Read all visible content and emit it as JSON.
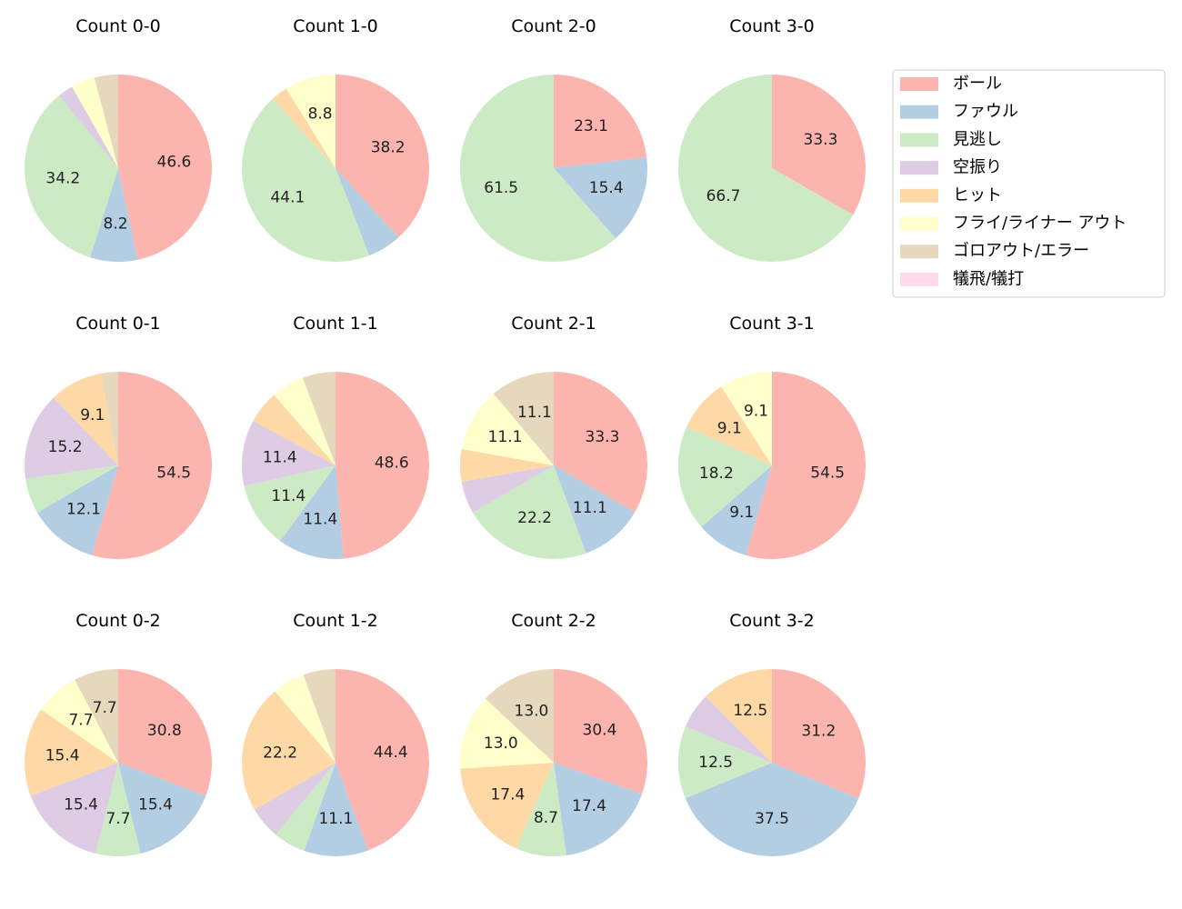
{
  "chart_data": {
    "type": "pie",
    "start_angle_deg": 90,
    "direction": "clockwise",
    "legend_position": "top-right",
    "categories": [
      "ボール",
      "ファウル",
      "見逃し",
      "空振り",
      "ヒット",
      "フライ/ライナー アウト",
      "ゴロアウト/エラー",
      "犠飛/犠打"
    ],
    "colors": [
      "#fbb4ae",
      "#b3cde3",
      "#ccebc5",
      "#decbe4",
      "#fed9a6",
      "#ffffcc",
      "#e5d8bd",
      "#fddaec"
    ],
    "charts": [
      {
        "title": "Count 0-0",
        "values": [
          46.6,
          8.2,
          34.2,
          2.7,
          0,
          4.1,
          4.1,
          0
        ]
      },
      {
        "title": "Count 1-0",
        "values": [
          38.2,
          5.9,
          44.1,
          0,
          2.9,
          8.8,
          0,
          0
        ]
      },
      {
        "title": "Count 2-0",
        "values": [
          23.1,
          15.4,
          61.5,
          0,
          0,
          0,
          0,
          0
        ]
      },
      {
        "title": "Count 3-0",
        "values": [
          33.3,
          0,
          66.7,
          0,
          0,
          0,
          0,
          0
        ]
      },
      {
        "title": "Count 0-1",
        "values": [
          54.5,
          12.1,
          6.1,
          15.2,
          9.1,
          0,
          3.0,
          0
        ]
      },
      {
        "title": "Count 1-1",
        "values": [
          48.6,
          11.4,
          11.4,
          11.4,
          5.7,
          5.7,
          5.7,
          0
        ]
      },
      {
        "title": "Count 2-1",
        "values": [
          33.3,
          11.1,
          22.2,
          5.6,
          5.6,
          11.1,
          11.1,
          0
        ]
      },
      {
        "title": "Count 3-1",
        "values": [
          54.5,
          9.1,
          18.2,
          0,
          9.1,
          9.1,
          0,
          0
        ]
      },
      {
        "title": "Count 0-2",
        "values": [
          30.8,
          15.4,
          7.7,
          15.4,
          15.4,
          7.7,
          7.7,
          0
        ]
      },
      {
        "title": "Count 1-2",
        "values": [
          44.4,
          11.1,
          5.6,
          5.6,
          22.2,
          5.6,
          5.6,
          0
        ]
      },
      {
        "title": "Count 2-2",
        "values": [
          30.4,
          17.4,
          8.7,
          0,
          17.4,
          13.0,
          13.0,
          0
        ]
      },
      {
        "title": "Count 3-2",
        "values": [
          31.2,
          37.5,
          12.5,
          6.2,
          12.5,
          0,
          0,
          0
        ]
      }
    ]
  }
}
